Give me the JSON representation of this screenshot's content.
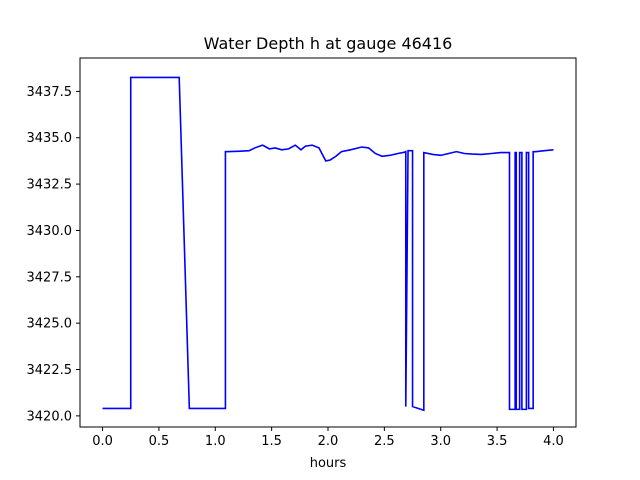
{
  "chart_data": {
    "type": "line",
    "title": "Water Depth h at gauge 46416",
    "xlabel": "hours",
    "ylabel": "",
    "xlim": [
      -0.2,
      4.2
    ],
    "ylim": [
      3419.4,
      3439.3
    ],
    "grid": false,
    "legend": "none",
    "xticks": [
      0.0,
      0.5,
      1.0,
      1.5,
      2.0,
      2.5,
      3.0,
      3.5,
      4.0
    ],
    "xtick_labels": [
      "0.0",
      "0.5",
      "1.0",
      "1.5",
      "2.0",
      "2.5",
      "3.0",
      "3.5",
      "4.0"
    ],
    "yticks": [
      3420.0,
      3422.5,
      3425.0,
      3427.5,
      3430.0,
      3432.5,
      3435.0,
      3437.5
    ],
    "ytick_labels": [
      "3420.0",
      "3422.5",
      "3425.0",
      "3427.5",
      "3430.0",
      "3432.5",
      "3435.0",
      "3437.5"
    ],
    "series": [
      {
        "color": "#0000ff",
        "x": [
          0.0,
          0.25,
          0.25,
          0.68,
          0.77,
          1.09,
          1.09,
          1.2,
          1.3,
          1.35,
          1.42,
          1.48,
          1.53,
          1.59,
          1.65,
          1.71,
          1.76,
          1.8,
          1.86,
          1.92,
          1.95,
          1.98,
          2.02,
          2.07,
          2.12,
          2.2,
          2.3,
          2.36,
          2.42,
          2.48,
          2.55,
          2.62,
          2.68,
          2.69,
          2.69,
          2.71,
          2.71,
          2.74,
          2.75,
          2.75,
          2.85,
          2.85,
          2.93,
          3.0,
          3.07,
          3.14,
          3.21,
          3.28,
          3.36,
          3.45,
          3.53,
          3.6,
          3.61,
          3.61,
          3.66,
          3.66,
          3.67,
          3.67,
          3.7,
          3.7,
          3.72,
          3.72,
          3.76,
          3.76,
          3.78,
          3.78,
          3.82,
          3.82,
          3.84,
          3.84,
          3.92,
          4.0
        ],
        "y": [
          3420.4,
          3420.4,
          3438.25,
          3438.25,
          3420.4,
          3420.4,
          3434.25,
          3434.27,
          3434.3,
          3434.45,
          3434.6,
          3434.4,
          3434.45,
          3434.35,
          3434.4,
          3434.6,
          3434.35,
          3434.55,
          3434.6,
          3434.45,
          3434.1,
          3433.75,
          3433.8,
          3434.0,
          3434.25,
          3434.35,
          3434.5,
          3434.45,
          3434.15,
          3434.0,
          3434.05,
          3434.15,
          3434.22,
          3434.25,
          3420.5,
          3434.3,
          3434.3,
          3434.3,
          3434.3,
          3420.5,
          3420.3,
          3434.2,
          3434.1,
          3434.05,
          3434.15,
          3434.25,
          3434.15,
          3434.12,
          3434.1,
          3434.15,
          3434.2,
          3434.2,
          3434.2,
          3420.35,
          3420.35,
          3434.2,
          3434.2,
          3420.35,
          3420.35,
          3434.2,
          3434.2,
          3420.35,
          3420.35,
          3434.2,
          3434.2,
          3420.4,
          3420.4,
          3434.25,
          3434.25,
          3434.25,
          3434.3,
          3434.35
        ]
      }
    ]
  }
}
